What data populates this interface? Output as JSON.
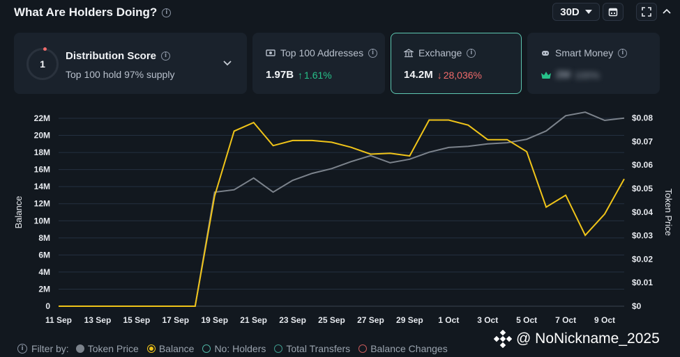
{
  "header": {
    "title": "What Are Holders Doing?",
    "period": "30D"
  },
  "cards": {
    "distribution": {
      "score": "1",
      "label": "Distribution Score",
      "sub": "Top 100 hold 97% supply"
    },
    "top100": {
      "label": "Top 100 Addresses",
      "value": "1.97B",
      "change": "1.61%"
    },
    "exchange": {
      "label": "Exchange",
      "value": "14.2M",
      "change": "28,036%"
    },
    "smart": {
      "label": "Smart Money",
      "value": "2M",
      "change": "100%"
    }
  },
  "legend": {
    "filter_label": "Filter by:",
    "items": [
      "Token Price",
      "Balance",
      "No: Holders",
      "Total Transfers",
      "Balance Changes"
    ]
  },
  "watermark": "@ NoNickname_2025",
  "colors": {
    "balance": "#f0c419",
    "price": "#7c838c",
    "accent": "#5ec8b2",
    "up": "#27c28a",
    "down": "#f06b6b"
  },
  "chart_data": {
    "type": "line",
    "x_ticks": [
      "11 Sep",
      "13 Sep",
      "15 Sep",
      "17 Sep",
      "19 Sep",
      "21 Sep",
      "23 Sep",
      "25 Sep",
      "27 Sep",
      "29 Sep",
      "1 Oct",
      "3 Oct",
      "5 Oct",
      "7 Oct",
      "9 Oct"
    ],
    "x": [
      "11 Sep",
      "12 Sep",
      "13 Sep",
      "14 Sep",
      "15 Sep",
      "16 Sep",
      "17 Sep",
      "18 Sep",
      "19 Sep",
      "20 Sep",
      "21 Sep",
      "22 Sep",
      "23 Sep",
      "24 Sep",
      "25 Sep",
      "26 Sep",
      "27 Sep",
      "28 Sep",
      "29 Sep",
      "30 Sep",
      "1 Oct",
      "2 Oct",
      "3 Oct",
      "4 Oct",
      "5 Oct",
      "6 Oct",
      "7 Oct",
      "8 Oct",
      "9 Oct",
      "10 Oct"
    ],
    "ylabel": "Balance",
    "y2label": "Token Price",
    "y_ticks": [
      "0",
      "2M",
      "4M",
      "6M",
      "8M",
      "10M",
      "12M",
      "14M",
      "16M",
      "18M",
      "20M",
      "22M"
    ],
    "y2_ticks": [
      "$0",
      "$0.01",
      "$0.02",
      "$0.03",
      "$0.04",
      "$0.05",
      "$0.06",
      "$0.07",
      "$0.08"
    ],
    "ylim": [
      0,
      22000000
    ],
    "y2lim": [
      0,
      0.0799
    ],
    "series": [
      {
        "name": "Balance",
        "axis": "left",
        "values": [
          0,
          0,
          0,
          0,
          0,
          0,
          0,
          0,
          12900000,
          20500000,
          21500000,
          18800000,
          19400000,
          19400000,
          19200000,
          18600000,
          17800000,
          17900000,
          17600000,
          21800000,
          21800000,
          21200000,
          19500000,
          19500000,
          18100000,
          11600000,
          13000000,
          8300000,
          10800000,
          14900000
        ]
      },
      {
        "name": "Token Price",
        "axis": "right",
        "values": [
          0,
          0,
          0,
          0,
          0,
          0,
          0,
          0,
          0.0485,
          0.0495,
          0.0545,
          0.0485,
          0.0535,
          0.0565,
          0.0585,
          0.0615,
          0.064,
          0.061,
          0.0625,
          0.0655,
          0.0675,
          0.068,
          0.069,
          0.0695,
          0.071,
          0.0745,
          0.081,
          0.0825,
          0.079,
          0.08
        ]
      }
    ],
    "grid": true
  }
}
